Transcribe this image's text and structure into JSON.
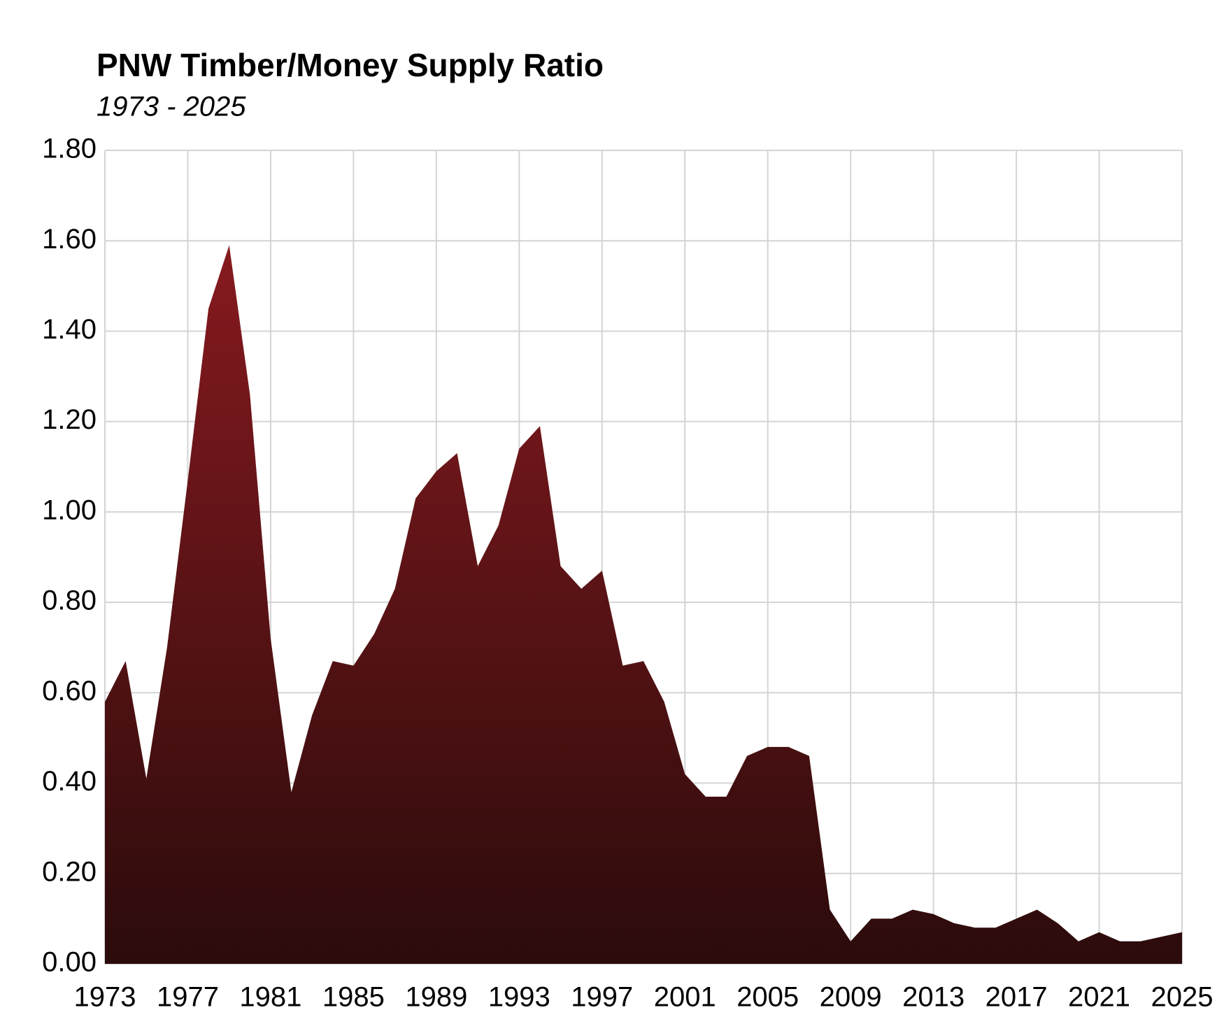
{
  "chart_data": {
    "type": "area",
    "title": "PNW Timber/Money Supply Ratio",
    "subtitle": "1973 - 2025",
    "x": [
      1973,
      1974,
      1975,
      1976,
      1977,
      1978,
      1979,
      1980,
      1981,
      1982,
      1983,
      1984,
      1985,
      1986,
      1987,
      1988,
      1989,
      1990,
      1991,
      1992,
      1993,
      1994,
      1995,
      1996,
      1997,
      1998,
      1999,
      2000,
      2001,
      2002,
      2003,
      2004,
      2005,
      2006,
      2007,
      2008,
      2009,
      2010,
      2011,
      2012,
      2013,
      2014,
      2015,
      2016,
      2017,
      2018,
      2019,
      2020,
      2021,
      2022,
      2023,
      2024,
      2025
    ],
    "values": [
      0.58,
      0.67,
      0.41,
      0.7,
      1.07,
      1.45,
      1.59,
      1.26,
      0.72,
      0.38,
      0.55,
      0.67,
      0.66,
      0.73,
      0.83,
      1.03,
      1.09,
      1.13,
      0.88,
      0.97,
      1.14,
      1.19,
      0.88,
      0.83,
      0.87,
      0.66,
      0.67,
      0.58,
      0.42,
      0.37,
      0.37,
      0.46,
      0.48,
      0.48,
      0.46,
      0.12,
      0.05,
      0.1,
      0.1,
      0.12,
      0.11,
      0.09,
      0.08,
      0.08,
      0.1,
      0.12,
      0.09,
      0.05,
      0.07,
      0.05,
      0.05,
      0.06,
      0.07
    ],
    "gradient": [
      "#861a1f",
      "#2b0b0b"
    ],
    "xlim": [
      1973,
      2025
    ],
    "xticks": [
      1973,
      1977,
      1981,
      1985,
      1989,
      1993,
      1997,
      2001,
      2005,
      2009,
      2013,
      2017,
      2021,
      2025
    ],
    "ylim": [
      0,
      1.8
    ],
    "yticks": [
      {
        "value": 0,
        "label": "0.00"
      },
      {
        "value": 0.2,
        "label": "0.20"
      },
      {
        "value": 0.4,
        "label": "0.40"
      },
      {
        "value": 0.6,
        "label": "0.60"
      },
      {
        "value": 0.8,
        "label": "0.80"
      },
      {
        "value": 1.0,
        "label": "1.00"
      },
      {
        "value": 1.2,
        "label": "1.20"
      },
      {
        "value": 1.4,
        "label": "1.40"
      },
      {
        "value": 1.6,
        "label": "1.60"
      },
      {
        "value": 1.8,
        "label": "1.80"
      }
    ],
    "grid": true
  }
}
